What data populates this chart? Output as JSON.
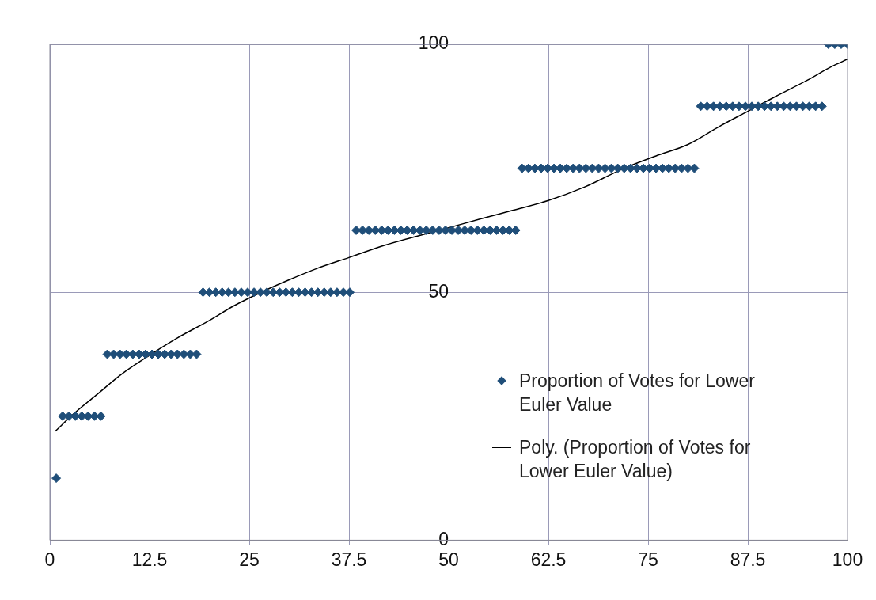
{
  "chart_data": {
    "type": "scatter",
    "legend": "right",
    "grid": true,
    "xlim": [
      0,
      100
    ],
    "xticks": [
      0,
      12.5,
      25,
      37.5,
      50,
      62.5,
      75,
      87.5,
      100
    ],
    "ylim": [
      0,
      100
    ],
    "yticks": [
      0,
      50,
      100
    ],
    "series": [
      {
        "name": "Proportion of Votes for Lower Euler Value",
        "marker": "diamond",
        "color": "#1f4e79",
        "x": [
          0.8,
          1.6,
          2.4,
          3.2,
          4,
          4.8,
          5.6,
          6.4,
          7.2,
          8,
          8.8,
          9.6,
          10.4,
          11.2,
          12,
          12.8,
          13.6,
          14.4,
          15.2,
          16,
          16.8,
          17.6,
          18.4,
          19.2,
          20,
          20.8,
          21.6,
          22.4,
          23.2,
          24,
          24.8,
          25.6,
          26.4,
          27.2,
          28,
          28.8,
          29.6,
          30.4,
          31.2,
          32,
          32.8,
          33.6,
          34.4,
          35.2,
          36,
          36.8,
          37.6,
          38.4,
          39.2,
          40,
          40.8,
          41.6,
          42.4,
          43.2,
          44,
          44.8,
          45.6,
          46.4,
          47.2,
          48,
          48.8,
          49.6,
          50.4,
          51.2,
          52,
          52.8,
          53.6,
          54.4,
          55.2,
          56,
          56.8,
          57.6,
          58.4,
          59.2,
          60,
          60.8,
          61.6,
          62.4,
          63.2,
          64,
          64.8,
          65.6,
          66.4,
          67.2,
          68,
          68.8,
          69.6,
          70.4,
          71.2,
          72,
          72.8,
          73.6,
          74.4,
          75.2,
          76,
          76.8,
          77.6,
          78.4,
          79.2,
          80,
          80.8,
          81.6,
          82.4,
          83.2,
          84,
          84.8,
          85.6,
          86.4,
          87.2,
          88,
          88.8,
          89.6,
          90.4,
          91.2,
          92,
          92.8,
          93.6,
          94.4,
          95.2,
          96,
          96.8,
          97.6,
          98.4,
          99.2,
          100
        ],
        "values": [
          12.5,
          25,
          25,
          25,
          25,
          25,
          25,
          25,
          37.5,
          37.5,
          37.5,
          37.5,
          37.5,
          37.5,
          37.5,
          37.5,
          37.5,
          37.5,
          37.5,
          37.5,
          37.5,
          37.5,
          37.5,
          50,
          50,
          50,
          50,
          50,
          50,
          50,
          50,
          50,
          50,
          50,
          50,
          50,
          50,
          50,
          50,
          50,
          50,
          50,
          50,
          50,
          50,
          50,
          50,
          62.5,
          62.5,
          62.5,
          62.5,
          62.5,
          62.5,
          62.5,
          62.5,
          62.5,
          62.5,
          62.5,
          62.5,
          62.5,
          62.5,
          62.5,
          62.5,
          62.5,
          62.5,
          62.5,
          62.5,
          62.5,
          62.5,
          62.5,
          62.5,
          62.5,
          62.5,
          75,
          75,
          75,
          75,
          75,
          75,
          75,
          75,
          75,
          75,
          75,
          75,
          75,
          75,
          75,
          75,
          75,
          75,
          75,
          75,
          75,
          75,
          75,
          75,
          75,
          75,
          75,
          75,
          87.5,
          87.5,
          87.5,
          87.5,
          87.5,
          87.5,
          87.5,
          87.5,
          87.5,
          87.5,
          87.5,
          87.5,
          87.5,
          87.5,
          87.5,
          87.5,
          87.5,
          87.5,
          87.5,
          87.5,
          100,
          100,
          100,
          100
        ]
      },
      {
        "name": "Poly. (Proportion of Votes for Lower Euler Value)",
        "type": "line",
        "marker": "none",
        "line_style": "solid",
        "color": "#000000",
        "x": [
          0.7,
          3,
          6,
          9,
          12.5,
          16,
          20,
          23,
          26.5,
          30,
          33.5,
          37.5,
          42,
          46,
          50,
          54,
          58,
          62.5,
          67,
          72,
          76,
          80,
          84,
          87.5,
          91,
          95,
          98,
          100
        ],
        "values": [
          22,
          25.5,
          29.5,
          33.5,
          37.3,
          40.8,
          44.3,
          47.2,
          50,
          52.5,
          54.8,
          57,
          59.5,
          61.3,
          63,
          64.8,
          66.5,
          68.5,
          71.2,
          75,
          77.5,
          79.8,
          83.5,
          86.5,
          89.5,
          92.8,
          95.5,
          97
        ]
      }
    ]
  }
}
